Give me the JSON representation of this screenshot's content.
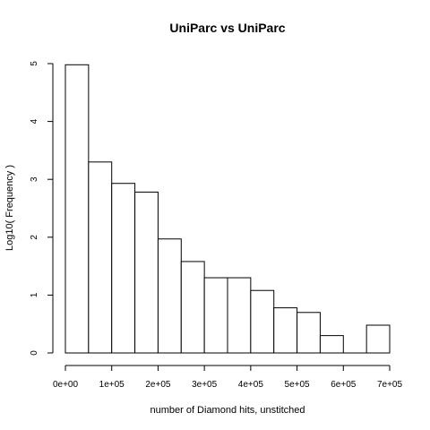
{
  "chart_data": {
    "type": "bar",
    "title": "UniParc vs UniParc",
    "xlabel": "number of Diamond hits, unstitched",
    "ylabel": "Log10( Frequency )",
    "bin_width": 50000,
    "bins": [
      {
        "start": 0,
        "end": 50000,
        "value": 4.98
      },
      {
        "start": 50000,
        "end": 100000,
        "value": 3.3
      },
      {
        "start": 100000,
        "end": 150000,
        "value": 2.93
      },
      {
        "start": 150000,
        "end": 200000,
        "value": 2.78
      },
      {
        "start": 200000,
        "end": 250000,
        "value": 1.97
      },
      {
        "start": 250000,
        "end": 300000,
        "value": 1.58
      },
      {
        "start": 300000,
        "end": 350000,
        "value": 1.3
      },
      {
        "start": 350000,
        "end": 400000,
        "value": 1.3
      },
      {
        "start": 400000,
        "end": 450000,
        "value": 1.08
      },
      {
        "start": 450000,
        "end": 500000,
        "value": 0.78
      },
      {
        "start": 500000,
        "end": 550000,
        "value": 0.7
      },
      {
        "start": 550000,
        "end": 600000,
        "value": 0.3
      },
      {
        "start": 600000,
        "end": 650000,
        "value": 0.0
      },
      {
        "start": 650000,
        "end": 700000,
        "value": 0.48
      }
    ],
    "xlim": [
      0,
      700000
    ],
    "ylim": [
      0,
      5
    ],
    "x_ticks": [
      {
        "value": 0,
        "label": "0e+00"
      },
      {
        "value": 100000,
        "label": "1e+05"
      },
      {
        "value": 200000,
        "label": "2e+05"
      },
      {
        "value": 300000,
        "label": "3e+05"
      },
      {
        "value": 400000,
        "label": "4e+05"
      },
      {
        "value": 500000,
        "label": "5e+05"
      },
      {
        "value": 600000,
        "label": "6e+05"
      },
      {
        "value": 700000,
        "label": "7e+05"
      }
    ],
    "y_ticks": [
      {
        "value": 0,
        "label": "0"
      },
      {
        "value": 1,
        "label": "1"
      },
      {
        "value": 2,
        "label": "2"
      },
      {
        "value": 3,
        "label": "3"
      },
      {
        "value": 4,
        "label": "4"
      },
      {
        "value": 5,
        "label": "5"
      }
    ],
    "grid": false,
    "colors": {
      "bar_fill": "#ffffff",
      "bar_stroke": "#000000"
    }
  }
}
